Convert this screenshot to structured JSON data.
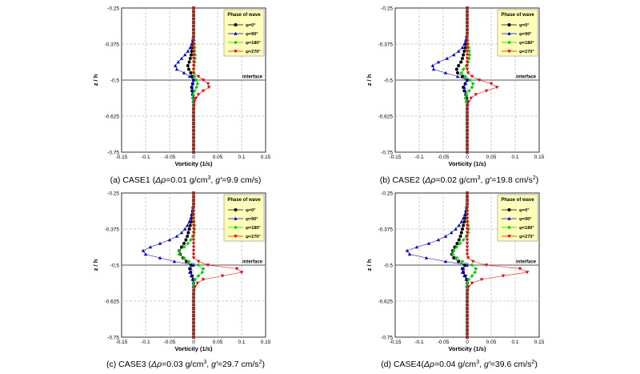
{
  "legend": {
    "title": "Phase of wave",
    "entries": [
      {
        "label": "φ=0°",
        "color": "#000000",
        "marker": "circle"
      },
      {
        "label": "φ=90°",
        "color": "#0000cc",
        "marker": "triangle-up"
      },
      {
        "label": "φ=180°",
        "color": "#00cc00",
        "marker": "diamond"
      },
      {
        "label": "φ=270°",
        "color": "#ee0000",
        "marker": "triangle-down"
      }
    ]
  },
  "interface_label": "interface",
  "xlabel": "Vorticity (1/s)",
  "ylabel": "z / h",
  "xticks": [
    "-0.15",
    "-0.1",
    "-0.05",
    "0",
    "0.05",
    "0.1",
    "0.15"
  ],
  "yticks": [
    "-0.25",
    "-0.375",
    "-0.5",
    "-0.625",
    "-0.75"
  ],
  "captions": [
    {
      "pre": "(a) CASE1 (",
      "drho": "Δρ",
      "mid": "=0.01 g/cm",
      "sup1": "3",
      "sep": ", ",
      "g": "g′",
      "post": "=9.9 cm/s)",
      "sup2": ""
    },
    {
      "pre": "(b) CASE2 (",
      "drho": "Δρ",
      "mid": "=0.02 g/cm",
      "sup1": "3",
      "sep": ", ",
      "g": "g′",
      "post": "=19.8 cm/s",
      "sup2": "2",
      "end": ")"
    },
    {
      "pre": "(c) CASE3 (",
      "drho": "Δρ",
      "mid": "=0.03 g/cm",
      "sup1": "3",
      "sep": ", ",
      "g": "g′",
      "post": "=29.7 cm/s",
      "sup2": "2",
      "end": ")"
    },
    {
      "pre": "(d) CASE4(",
      "drho": "Δρ",
      "mid": "=0.04 g/cm",
      "sup1": "3",
      "sep": ", ",
      "g": "g′",
      "post": "=39.6 cm/s",
      "sup2": "2",
      "end": ")"
    }
  ],
  "chart_data": [
    {
      "type": "line",
      "xlim": [
        -0.15,
        0.15
      ],
      "ylim": [
        -0.75,
        -0.25
      ],
      "interface_z": -0.5,
      "grid": true,
      "legend_position": "top-right",
      "z": [
        -0.25,
        -0.2625,
        -0.275,
        -0.2875,
        -0.3,
        -0.3125,
        -0.325,
        -0.3375,
        -0.35,
        -0.3625,
        -0.375,
        -0.3875,
        -0.4,
        -0.4125,
        -0.425,
        -0.4375,
        -0.45,
        -0.4625,
        -0.475,
        -0.4875,
        -0.5,
        -0.5125,
        -0.525,
        -0.5375,
        -0.55,
        -0.5625,
        -0.575,
        -0.5875,
        -0.6,
        -0.6125,
        -0.625,
        -0.6375,
        -0.65,
        -0.6625,
        -0.675,
        -0.6875,
        -0.7,
        -0.7125,
        -0.725,
        -0.7375,
        -0.75
      ],
      "series": [
        {
          "name": "φ=0°",
          "values": [
            0,
            0,
            0,
            0,
            0,
            0,
            0,
            0,
            0,
            -0.001,
            -0.002,
            -0.003,
            -0.004,
            -0.005,
            -0.007,
            -0.009,
            -0.012,
            -0.01,
            -0.006,
            -0.003,
            0,
            -0.002,
            -0.004,
            -0.003,
            -0.002,
            -0.001,
            0,
            0,
            0,
            0,
            0,
            0,
            0,
            0,
            0,
            0,
            0,
            0,
            0,
            0,
            0
          ]
        },
        {
          "name": "φ=90°",
          "values": [
            0,
            0,
            0,
            0,
            0,
            0,
            0,
            0,
            -0.001,
            -0.002,
            -0.004,
            -0.007,
            -0.012,
            -0.018,
            -0.025,
            -0.032,
            -0.038,
            -0.035,
            -0.02,
            -0.008,
            0,
            -0.002,
            -0.003,
            -0.002,
            -0.001,
            0,
            0,
            0,
            0,
            0,
            0,
            0,
            0,
            0,
            0,
            0,
            0,
            0,
            0,
            0,
            0
          ]
        },
        {
          "name": "φ=180°",
          "values": [
            0,
            0,
            0,
            0,
            0,
            0,
            0,
            0,
            0,
            0.001,
            0.002,
            0.002,
            0.002,
            0.003,
            0.003,
            0.002,
            0.001,
            0,
            0,
            0.002,
            0.006,
            0.008,
            0.006,
            0.002,
            -0.001,
            -0.002,
            -0.001,
            0,
            0,
            0,
            0,
            0,
            0,
            0,
            0,
            0,
            0,
            0,
            0,
            0,
            0
          ]
        },
        {
          "name": "φ=270°",
          "values": [
            0,
            0,
            0,
            0,
            0,
            0,
            0,
            0,
            0,
            0,
            0,
            0,
            0,
            0,
            0,
            0,
            0,
            0,
            0,
            0.01,
            0.02,
            0.03,
            0.032,
            0.02,
            0.01,
            0.005,
            0.002,
            0.001,
            0,
            0,
            0,
            0,
            0,
            0,
            0,
            0,
            0,
            0,
            0,
            0,
            0
          ]
        }
      ]
    },
    {
      "type": "line",
      "xlim": [
        -0.15,
        0.15
      ],
      "ylim": [
        -0.75,
        -0.25
      ],
      "interface_z": -0.5,
      "grid": true,
      "legend_position": "top-right",
      "z": [
        -0.25,
        -0.2625,
        -0.275,
        -0.2875,
        -0.3,
        -0.3125,
        -0.325,
        -0.3375,
        -0.35,
        -0.3625,
        -0.375,
        -0.3875,
        -0.4,
        -0.4125,
        -0.425,
        -0.4375,
        -0.45,
        -0.4625,
        -0.475,
        -0.4875,
        -0.5,
        -0.5125,
        -0.525,
        -0.5375,
        -0.55,
        -0.5625,
        -0.575,
        -0.5875,
        -0.6,
        -0.6125,
        -0.625,
        -0.6375,
        -0.65,
        -0.6625,
        -0.675,
        -0.6875,
        -0.7,
        -0.7125,
        -0.725,
        -0.7375,
        -0.75
      ],
      "series": [
        {
          "name": "φ=0°",
          "values": [
            0,
            0,
            0,
            0,
            0,
            0,
            0,
            0,
            -0.001,
            -0.002,
            -0.003,
            -0.004,
            -0.006,
            -0.008,
            -0.01,
            -0.013,
            -0.018,
            -0.022,
            -0.02,
            -0.01,
            0,
            -0.004,
            -0.008,
            -0.006,
            -0.003,
            -0.001,
            0,
            0,
            0,
            0,
            0,
            0,
            0,
            0,
            0,
            0,
            0,
            0,
            0,
            0,
            0
          ]
        },
        {
          "name": "φ=90°",
          "values": [
            0,
            0,
            0,
            0,
            0,
            0,
            0,
            0,
            -0.001,
            -0.003,
            -0.006,
            -0.01,
            -0.018,
            -0.028,
            -0.042,
            -0.06,
            -0.072,
            -0.07,
            -0.045,
            -0.02,
            0,
            -0.004,
            -0.006,
            -0.004,
            -0.002,
            -0.001,
            0,
            0,
            0,
            0,
            0,
            0,
            0,
            0,
            0,
            0,
            0,
            0,
            0,
            0,
            0
          ]
        },
        {
          "name": "φ=180°",
          "values": [
            0,
            0,
            0,
            0,
            0,
            0,
            0,
            0,
            0,
            0.001,
            0.002,
            0.003,
            0.004,
            0.005,
            0.004,
            0.002,
            -0.002,
            -0.008,
            -0.012,
            -0.004,
            0.006,
            0.012,
            0.01,
            0.004,
            -0.002,
            -0.004,
            -0.002,
            0,
            0,
            0,
            0,
            0,
            0,
            0,
            0,
            0,
            0,
            0,
            0,
            0,
            0
          ]
        },
        {
          "name": "φ=270°",
          "values": [
            0,
            0,
            0,
            0,
            0,
            0,
            0,
            0,
            0,
            0,
            0,
            0,
            0,
            0,
            0,
            0,
            0,
            0,
            0.002,
            0.01,
            0.025,
            0.05,
            0.062,
            0.04,
            0.018,
            0.008,
            0.003,
            0.001,
            0,
            0,
            0,
            0,
            0,
            0,
            0,
            0,
            0,
            0,
            0,
            0,
            0
          ]
        }
      ]
    },
    {
      "type": "line",
      "xlim": [
        -0.15,
        0.15
      ],
      "ylim": [
        -0.75,
        -0.25
      ],
      "interface_z": -0.5,
      "grid": true,
      "legend_position": "top-right",
      "z": [
        -0.25,
        -0.2625,
        -0.275,
        -0.2875,
        -0.3,
        -0.3125,
        -0.325,
        -0.3375,
        -0.35,
        -0.3625,
        -0.375,
        -0.3875,
        -0.4,
        -0.4125,
        -0.425,
        -0.4375,
        -0.45,
        -0.4625,
        -0.475,
        -0.4875,
        -0.5,
        -0.5125,
        -0.525,
        -0.5375,
        -0.55,
        -0.5625,
        -0.575,
        -0.5875,
        -0.6,
        -0.6125,
        -0.625,
        -0.6375,
        -0.65,
        -0.6625,
        -0.675,
        -0.6875,
        -0.7,
        -0.7125,
        -0.725,
        -0.7375,
        -0.75
      ],
      "series": [
        {
          "name": "φ=0°",
          "values": [
            0,
            0,
            0,
            0,
            -0.001,
            -0.002,
            -0.003,
            -0.004,
            -0.005,
            -0.007,
            -0.009,
            -0.011,
            -0.013,
            -0.016,
            -0.02,
            -0.025,
            -0.03,
            -0.028,
            -0.022,
            -0.015,
            -0.005,
            -0.008,
            -0.006,
            -0.003,
            -0.001,
            0,
            0,
            0,
            0,
            0,
            0,
            0,
            0,
            0,
            0,
            0,
            0,
            0,
            0,
            0,
            0
          ]
        },
        {
          "name": "φ=90°",
          "values": [
            0,
            0,
            0,
            0,
            -0.001,
            -0.002,
            -0.004,
            -0.006,
            -0.009,
            -0.013,
            -0.018,
            -0.025,
            -0.035,
            -0.05,
            -0.07,
            -0.09,
            -0.105,
            -0.1,
            -0.07,
            -0.04,
            0,
            -0.006,
            -0.008,
            -0.005,
            -0.002,
            0,
            0,
            0,
            0,
            0,
            0,
            0,
            0,
            0,
            0,
            0,
            0,
            0,
            0,
            0,
            0
          ]
        },
        {
          "name": "φ=180°",
          "values": [
            0,
            0,
            0,
            0,
            0,
            0,
            0,
            0,
            0.001,
            0.002,
            0.002,
            0.001,
            -0.002,
            -0.006,
            -0.012,
            -0.02,
            -0.03,
            -0.03,
            -0.02,
            -0.01,
            0.01,
            0.02,
            0.018,
            0.01,
            0.003,
            0,
            0,
            0,
            0,
            0,
            0,
            0,
            0,
            0,
            0,
            0,
            0,
            0,
            0,
            0,
            0
          ]
        },
        {
          "name": "φ=270°",
          "values": [
            0,
            0,
            0,
            0,
            0,
            0,
            0,
            0,
            0,
            0,
            0,
            0,
            0,
            0,
            0,
            0,
            0,
            0,
            0,
            0.01,
            0.03,
            0.09,
            0.1,
            0.06,
            0.02,
            0.008,
            0.003,
            0.001,
            0,
            0,
            0,
            0,
            0,
            0,
            0,
            0,
            0,
            0,
            0,
            0,
            0
          ]
        }
      ]
    },
    {
      "type": "line",
      "xlim": [
        -0.15,
        0.15
      ],
      "ylim": [
        -0.75,
        -0.25
      ],
      "interface_z": -0.5,
      "grid": true,
      "legend_position": "top-right",
      "z": [
        -0.25,
        -0.2625,
        -0.275,
        -0.2875,
        -0.3,
        -0.3125,
        -0.325,
        -0.3375,
        -0.35,
        -0.3625,
        -0.375,
        -0.3875,
        -0.4,
        -0.4125,
        -0.425,
        -0.4375,
        -0.45,
        -0.4625,
        -0.475,
        -0.4875,
        -0.5,
        -0.5125,
        -0.525,
        -0.5375,
        -0.55,
        -0.5625,
        -0.575,
        -0.5875,
        -0.6,
        -0.6125,
        -0.625,
        -0.6375,
        -0.65,
        -0.6625,
        -0.675,
        -0.6875,
        -0.7,
        -0.7125,
        -0.725,
        -0.7375,
        -0.75
      ],
      "series": [
        {
          "name": "φ=0°",
          "values": [
            0,
            0,
            0,
            0,
            -0.001,
            -0.002,
            -0.003,
            -0.004,
            -0.006,
            -0.008,
            -0.01,
            -0.012,
            -0.014,
            -0.017,
            -0.021,
            -0.026,
            -0.03,
            -0.032,
            -0.028,
            -0.018,
            -0.005,
            -0.01,
            -0.008,
            -0.004,
            -0.001,
            0,
            0,
            0,
            0,
            0,
            0,
            0,
            0,
            0,
            0,
            0,
            0,
            0,
            0,
            0,
            0
          ]
        },
        {
          "name": "φ=90°",
          "values": [
            0,
            0,
            0,
            0,
            -0.001,
            -0.003,
            -0.005,
            -0.008,
            -0.012,
            -0.017,
            -0.024,
            -0.033,
            -0.045,
            -0.06,
            -0.08,
            -0.105,
            -0.125,
            -0.12,
            -0.085,
            -0.045,
            0,
            -0.008,
            -0.01,
            -0.006,
            -0.002,
            0,
            0,
            0,
            0,
            0,
            0,
            0,
            0,
            0,
            0,
            0,
            0,
            0,
            0,
            0,
            0
          ]
        },
        {
          "name": "φ=180°",
          "values": [
            0,
            0,
            0,
            0,
            0,
            0,
            0,
            0,
            0.001,
            0.002,
            0.003,
            0.002,
            -0.002,
            -0.008,
            -0.015,
            -0.022,
            -0.028,
            -0.03,
            -0.022,
            -0.01,
            0.01,
            0.018,
            0.016,
            0.01,
            0.003,
            0,
            0,
            0,
            0,
            0,
            0,
            0,
            0,
            0,
            0,
            0,
            0,
            0,
            0,
            0,
            0
          ]
        },
        {
          "name": "φ=270°",
          "values": [
            0,
            0,
            0,
            0,
            0,
            0,
            0,
            0,
            0,
            0,
            0,
            0,
            0,
            0,
            0,
            0,
            0,
            0,
            0.002,
            0.012,
            0.04,
            0.11,
            0.125,
            0.075,
            0.03,
            0.01,
            0.003,
            0.001,
            0,
            0,
            0,
            0,
            0,
            0,
            0,
            0,
            0,
            0,
            0,
            0,
            0
          ]
        }
      ]
    }
  ]
}
